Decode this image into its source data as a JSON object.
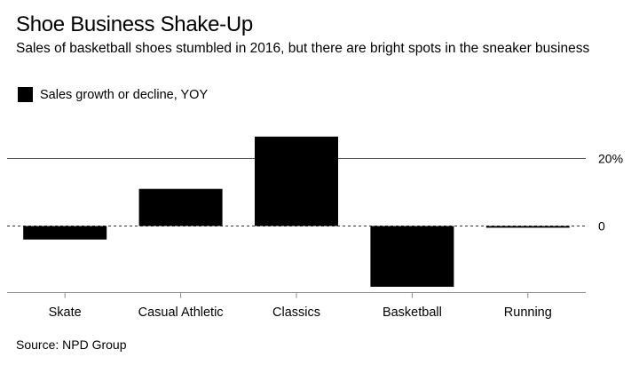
{
  "header": {
    "title": "Shoe Business Shake-Up",
    "subtitle": "Sales of basketball shoes stumbled in 2016, but there are bright spots in the sneaker business"
  },
  "legend": {
    "label": "Sales growth or decline, YOY"
  },
  "source": "Source: NPD Group",
  "colors": {
    "bar": "#000000",
    "grid": "#555555",
    "axis": "#888888",
    "background": "#ffffff"
  },
  "chart_data": {
    "type": "bar",
    "title": "Shoe Business Shake-Up",
    "xlabel": "",
    "ylabel": "",
    "categories": [
      "Skate",
      "Casual Athletic",
      "Classics",
      "Basketball",
      "Running"
    ],
    "series": [
      {
        "name": "Sales growth or decline, YOY",
        "values": [
          -4,
          11,
          26.5,
          -18,
          -0.5
        ]
      }
    ],
    "ylim": [
      -19,
      27
    ],
    "yticks": [
      {
        "value": 0,
        "label": "0"
      },
      {
        "value": 20,
        "label": "20%"
      }
    ],
    "legend_position": "top-left"
  }
}
